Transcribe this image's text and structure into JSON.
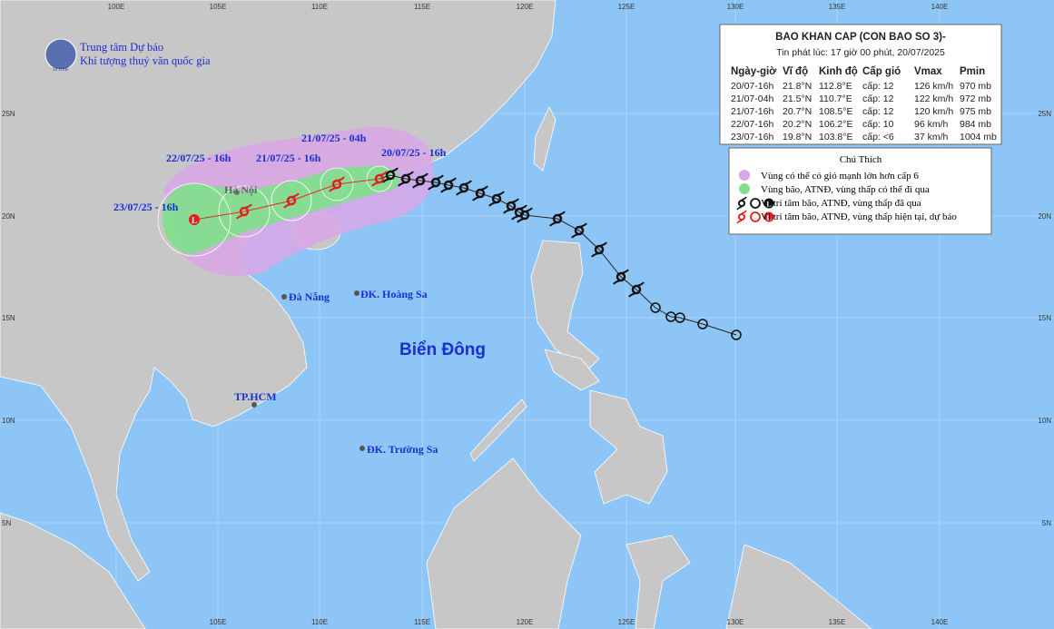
{
  "header": {
    "agency": [
      "Trung tâm Dự báo",
      "Khí tượng thuỷ văn quốc gia"
    ],
    "logo_text": "NCHMF"
  },
  "bulletin": {
    "title": "BAO KHAN CAP (CON BAO SO 3)-",
    "issued": "Tin phát lúc: 17 giờ 00 phút, 20/07/2025",
    "columns": [
      "Ngày-giờ",
      "Vĩ độ",
      "Kinh độ",
      "Cấp gió",
      "Vmax",
      "Pmin"
    ],
    "rows": [
      [
        "20/07-16h",
        "21.8°N",
        "112.8°E",
        "cấp: 12",
        "126 km/h",
        "970 mb"
      ],
      [
        "21/07-04h",
        "21.5°N",
        "110.7°E",
        "cấp: 12",
        "122 km/h",
        "972 mb"
      ],
      [
        "21/07-16h",
        "20.7°N",
        "108.5°E",
        "cấp: 12",
        "120 km/h",
        "975 mb"
      ],
      [
        "22/07-16h",
        "20.2°N",
        "106.2°E",
        "cấp: 10",
        "96 km/h",
        "984 mb"
      ],
      [
        "23/07-16h",
        "19.8°N",
        "103.8°E",
        "cấp: <6",
        "37 km/h",
        "1004 mb"
      ]
    ]
  },
  "legend": {
    "title": "Chú Thích",
    "items": [
      "Vùng có thể có gió mạnh lớn hơn cấp 6",
      "Vùng bão, ATNĐ, vùng thấp có thể đi qua",
      "Vị trí tâm bão, ATNĐ, vùng thấp đã qua",
      "Vị trí tâm bão, ATNĐ, vùng thấp hiện tại, dự báo"
    ]
  },
  "track_labels": [
    "21/07/25 - 04h",
    "20/07/25 - 16h",
    "22/07/25 - 16h",
    "21/07/25 - 16h",
    "23/07/25 - 16h"
  ],
  "places": [
    "Hà Nội",
    "Đà Nẵng",
    "ĐK. Hoàng Sa",
    "TP.HCM",
    "ĐK. Trường Sa"
  ],
  "sea": "Biển Đông",
  "lon_labels_top": [
    "100E",
    "105E",
    "110E",
    "115E",
    "120E",
    "125E",
    "130E",
    "135E",
    "140E"
  ],
  "lon_labels_bottom": [
    "105E",
    "110E",
    "115E",
    "120E",
    "125E",
    "130E",
    "135E",
    "140E"
  ],
  "lat_labels_left": [
    "25N",
    "20N",
    "15N",
    "10N",
    "5N"
  ],
  "lat_labels_right": [
    "25N",
    "20N",
    "15N",
    "10N",
    "5N"
  ]
}
